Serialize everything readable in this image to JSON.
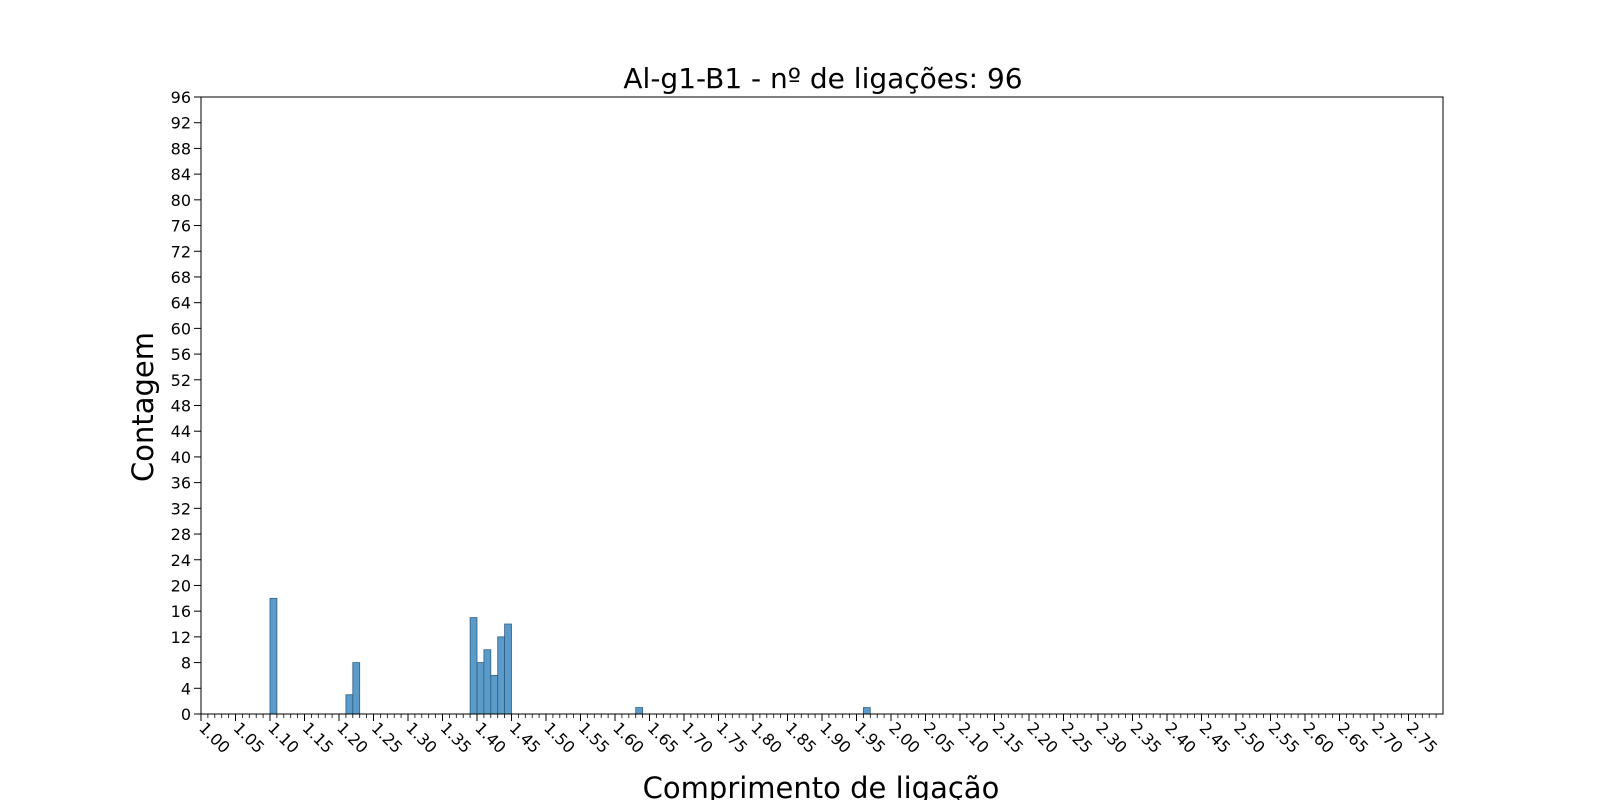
{
  "chart_data": {
    "type": "bar",
    "title": "Al-g1-B1 - nº de ligações: 96",
    "xlabel": "Comprimento de ligação",
    "ylabel": "Contagem",
    "xlim": [
      1.0,
      2.8
    ],
    "ylim": [
      0,
      96
    ],
    "grid": false,
    "bin_width": 0.01,
    "x_ticks": [
      "1.00",
      "1.05",
      "1.10",
      "1.15",
      "1.20",
      "1.25",
      "1.30",
      "1.35",
      "1.40",
      "1.45",
      "1.50",
      "1.55",
      "1.60",
      "1.65",
      "1.70",
      "1.75",
      "1.80",
      "1.85",
      "1.90",
      "1.95",
      "2.00",
      "2.05",
      "2.10",
      "2.15",
      "2.20",
      "2.25",
      "2.30",
      "2.35",
      "2.40",
      "2.45",
      "2.50",
      "2.55",
      "2.60",
      "2.65",
      "2.70",
      "2.75"
    ],
    "y_ticks": [
      "0",
      "4",
      "8",
      "12",
      "16",
      "20",
      "24",
      "28",
      "32",
      "36",
      "40",
      "44",
      "48",
      "52",
      "56",
      "60",
      "64",
      "68",
      "72",
      "76",
      "80",
      "84",
      "88",
      "92",
      "96"
    ],
    "bars": [
      {
        "x": 1.1,
        "value": 18
      },
      {
        "x": 1.21,
        "value": 3
      },
      {
        "x": 1.22,
        "value": 8
      },
      {
        "x": 1.39,
        "value": 15
      },
      {
        "x": 1.4,
        "value": 8
      },
      {
        "x": 1.41,
        "value": 10
      },
      {
        "x": 1.42,
        "value": 6
      },
      {
        "x": 1.43,
        "value": 12
      },
      {
        "x": 1.44,
        "value": 14
      },
      {
        "x": 1.63,
        "value": 1
      },
      {
        "x": 1.96,
        "value": 1
      }
    ],
    "colors": {
      "bar_fill": "#5b9bc9",
      "bar_edge": "#2f5f84"
    }
  }
}
